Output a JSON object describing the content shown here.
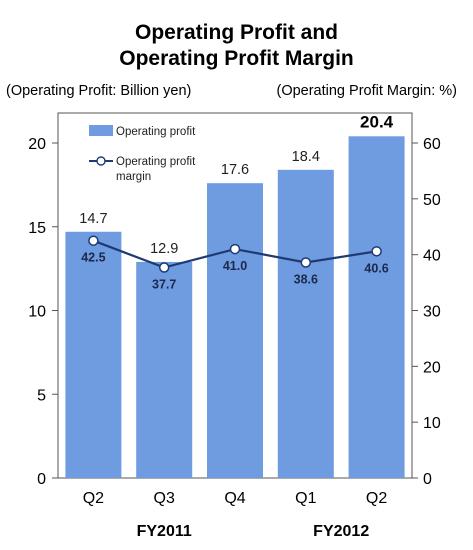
{
  "header": {
    "title_line1": "Operating Profit and",
    "title_line2": "Operating Profit Margin",
    "left_unit": "(Operating Profit: Billion yen)",
    "right_unit": "(Operating Profit Margin: %)"
  },
  "chart_data": {
    "type": "bar",
    "categories": [
      "Q2",
      "Q3",
      "Q4",
      "Q1",
      "Q2"
    ],
    "groups": [
      {
        "label": "FY2011",
        "categories": [
          0,
          1,
          2
        ]
      },
      {
        "label": "FY2012",
        "categories": [
          3,
          4
        ]
      }
    ],
    "series": [
      {
        "name": "Operating profit",
        "type": "bar",
        "axis": "left",
        "values": [
          14.7,
          12.9,
          17.6,
          18.4,
          20.4
        ],
        "labels": [
          "14.7",
          "12.9",
          "17.6",
          "18.4",
          "20.4"
        ],
        "emphasize_last": true
      },
      {
        "name_lines": [
          "Operating profit",
          "margin"
        ],
        "type": "line",
        "axis": "right",
        "values": [
          42.5,
          37.7,
          41.0,
          38.6,
          40.6
        ],
        "labels": [
          "42.5",
          "37.7",
          "41.0",
          "38.6",
          "40.6"
        ]
      }
    ],
    "y_left": {
      "min": 0,
      "max": 20,
      "ticks": [
        0,
        5,
        10,
        15,
        20
      ]
    },
    "y_right": {
      "min": 0,
      "max": 60,
      "ticks": [
        0,
        10,
        20,
        30,
        40,
        50,
        60
      ]
    },
    "grid": false,
    "legend_position": "top-left",
    "colors": {
      "bar": "#6f9be0",
      "line": "#1f3a72",
      "marker_fill": "#ffffff"
    }
  }
}
